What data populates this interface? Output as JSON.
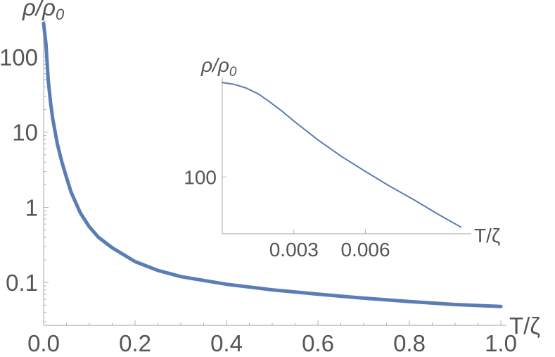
{
  "chart_data": [
    {
      "type": "line",
      "title": "",
      "xlabel": "T/ζ",
      "ylabel": "ρ/ρ",
      "ylabel_sub": "0",
      "yscale": "log",
      "xlim": [
        0,
        1.0
      ],
      "ylim": [
        0.027,
        300
      ],
      "x_ticks": [
        "0.0",
        "0.2",
        "0.4",
        "0.6",
        "0.8",
        "1.0"
      ],
      "x_tick_values": [
        0,
        0.2,
        0.4,
        0.6,
        0.8,
        1.0
      ],
      "y_ticks": [
        "0.1",
        "1",
        "10",
        "100"
      ],
      "y_tick_values": [
        0.1,
        1,
        10,
        100
      ],
      "grid": false,
      "color": "#5b7db5",
      "series": [
        {
          "x": [
            0.0,
            0.005,
            0.01,
            0.015,
            0.02,
            0.03,
            0.04,
            0.05,
            0.06,
            0.08,
            0.1,
            0.12,
            0.15,
            0.2,
            0.25,
            0.3,
            0.4,
            0.5,
            0.6,
            0.7,
            0.8,
            0.9,
            1.0
          ],
          "y": [
            280,
            150,
            50,
            25,
            15,
            7,
            4,
            2.5,
            1.6,
            0.85,
            0.55,
            0.4,
            0.29,
            0.19,
            0.145,
            0.12,
            0.095,
            0.08,
            0.07,
            0.062,
            0.056,
            0.051,
            0.048
          ]
        }
      ]
    },
    {
      "type": "line",
      "title": "",
      "xlabel": "T/ζ",
      "ylabel": "ρ/ρ",
      "ylabel_sub": "0",
      "yscale": "log",
      "xlim": [
        0,
        0.0102
      ],
      "ylim": [
        55,
        285
      ],
      "x_ticks": [
        "0.003",
        "0.006"
      ],
      "x_tick_values": [
        0.003,
        0.006
      ],
      "y_ticks": [
        "100"
      ],
      "y_tick_values": [
        100
      ],
      "grid": false,
      "color": "#5b7db5",
      "series": [
        {
          "x": [
            0.0,
            0.0005,
            0.001,
            0.0015,
            0.002,
            0.0025,
            0.003,
            0.004,
            0.005,
            0.006,
            0.007,
            0.008,
            0.009,
            0.01
          ],
          "y": [
            270,
            265,
            255,
            240,
            220,
            200,
            180,
            148,
            124,
            106,
            91,
            79,
            68,
            59
          ]
        }
      ]
    }
  ]
}
